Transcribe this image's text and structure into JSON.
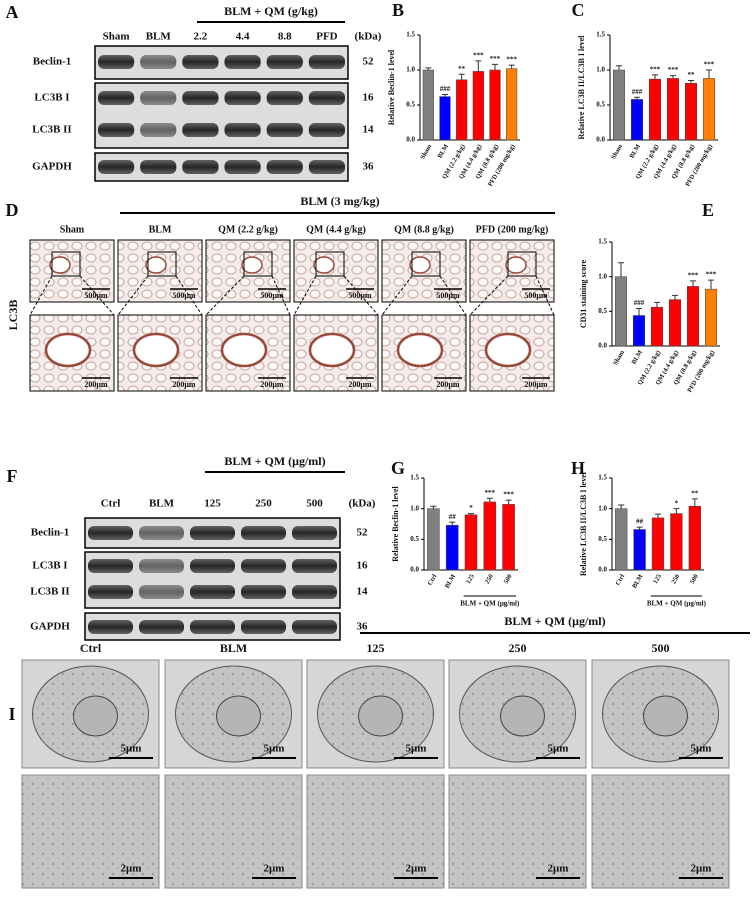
{
  "panel_letters": [
    "A",
    "B",
    "C",
    "D",
    "E",
    "F",
    "G",
    "H",
    "I"
  ],
  "blot_a": {
    "header": "BLM + QM (g/kg)",
    "lanes": [
      "Sham",
      "BLM",
      "2.2",
      "4.4",
      "8.8",
      "PFD"
    ],
    "kda_header": "(kDa)",
    "rows": [
      {
        "name": "Beclin-1",
        "kda": 52
      },
      {
        "name": "LC3B I",
        "kda": 16
      },
      {
        "name": "LC3B II",
        "kda": 14
      },
      {
        "name": "GAPDH",
        "kda": 36
      }
    ]
  },
  "histology_d": {
    "row_label": "LC3B",
    "header": "BLM (3 mg/kg)",
    "columns": [
      "Sham",
      "BLM",
      "QM (2.2 g/kg)",
      "QM (4.4 g/kg)",
      "QM (8.8 g/kg)",
      "PFD (200 mg/kg)"
    ],
    "scale_top": "500μm",
    "scale_bottom": "200μm"
  },
  "blot_f": {
    "header": "BLM + QM (μg/ml)",
    "lanes": [
      "Ctrl",
      "BLM",
      "125",
      "250",
      "500"
    ],
    "kda_header": "(kDa)",
    "rows": [
      {
        "name": "Beclin-1",
        "kda": 52
      },
      {
        "name": "LC3B I",
        "kda": 16
      },
      {
        "name": "LC3B II",
        "kda": 14
      },
      {
        "name": "GAPDH",
        "kda": 36
      }
    ]
  },
  "tem_i": {
    "header": "BLM + QM (μg/ml)",
    "columns": [
      "Ctrl",
      "BLM",
      "125",
      "250",
      "500"
    ],
    "scale_top": "5μm",
    "scale_bottom": "2μm"
  },
  "chart_data": [
    {
      "type": "bar",
      "ylabel": "Relative Beclin-1 level",
      "categories": [
        "Sham",
        "BLM",
        "QM (2.2 g/kg)",
        "QM (4.4 g/kg)",
        "QM (8.8 g/kg)",
        "PFD (200 mg/kg)"
      ],
      "values": [
        1.0,
        0.62,
        0.86,
        0.98,
        1.0,
        1.02
      ],
      "errors": [
        0.03,
        0.03,
        0.08,
        0.15,
        0.08,
        0.05
      ],
      "annotations": [
        null,
        "###",
        "**",
        "***",
        "***",
        "***"
      ],
      "colors": [
        "#808080",
        "#0000ff",
        "#ff0000",
        "#ff0000",
        "#ff0000",
        "#ff8000"
      ],
      "ylim": [
        0,
        1.5
      ],
      "yticks": [
        {
          "value": 0,
          "label": "0.0"
        },
        {
          "value": 0.5,
          "label": "0.5"
        },
        {
          "value": 1,
          "label": "1.0"
        },
        {
          "value": 1.5,
          "label": "1.5"
        }
      ]
    },
    {
      "type": "bar",
      "ylabel": "Relative LC3B II/LC3B I level",
      "categories": [
        "Sham",
        "BLM",
        "QM (2.2 g/kg)",
        "QM (4.4 g/kg)",
        "QM (8.8 g/kg)",
        "PFD (200 mg/kg)"
      ],
      "values": [
        1.0,
        0.58,
        0.87,
        0.88,
        0.81,
        0.88
      ],
      "errors": [
        0.06,
        0.03,
        0.06,
        0.04,
        0.04,
        0.12
      ],
      "annotations": [
        null,
        "###",
        "***",
        "***",
        "**",
        "***"
      ],
      "colors": [
        "#808080",
        "#0000ff",
        "#ff0000",
        "#ff0000",
        "#ff0000",
        "#ff8000"
      ],
      "ylim": [
        0,
        1.5
      ],
      "yticks": [
        {
          "value": 0,
          "label": "0.0"
        },
        {
          "value": 0.5,
          "label": "0.5"
        },
        {
          "value": 1,
          "label": "1.0"
        },
        {
          "value": 1.5,
          "label": "1.5"
        }
      ]
    },
    {
      "type": "bar",
      "ylabel": "CD31 staining score",
      "categories": [
        "Sham",
        "BLM",
        "QM (2.2 g/kg)",
        "QM (4.4 g/kg)",
        "QM (8.8 g/kg)",
        "PFD (200 mg/kg)"
      ],
      "values": [
        1.0,
        0.44,
        0.56,
        0.67,
        0.86,
        0.82
      ],
      "errors": [
        0.2,
        0.1,
        0.07,
        0.06,
        0.08,
        0.13
      ],
      "annotations": [
        null,
        "###",
        null,
        null,
        "***",
        "***"
      ],
      "colors": [
        "#808080",
        "#0000ff",
        "#ff0000",
        "#ff0000",
        "#ff0000",
        "#ff8000"
      ],
      "ylim": [
        0,
        1.5
      ],
      "yticks": [
        {
          "value": 0,
          "label": "0.0"
        },
        {
          "value": 0.5,
          "label": "0.5"
        },
        {
          "value": 1,
          "label": "1.0"
        },
        {
          "value": 1.5,
          "label": "1.5"
        }
      ]
    },
    {
      "type": "bar",
      "ylabel": "Relative Beclin-1 level",
      "xlabel": "BLM + QM (μg/ml)",
      "categories": [
        "Ctrl",
        "BLM",
        "125",
        "250",
        "500"
      ],
      "values": [
        1.0,
        0.73,
        0.9,
        1.11,
        1.07
      ],
      "errors": [
        0.04,
        0.05,
        0.02,
        0.06,
        0.07
      ],
      "annotations": [
        null,
        "##",
        "*",
        "***",
        "***"
      ],
      "colors": [
        "#808080",
        "#0000ff",
        "#ff0000",
        "#ff0000",
        "#ff0000"
      ],
      "ylim": [
        0,
        1.5
      ],
      "yticks": [
        {
          "value": 0,
          "label": "0.0"
        },
        {
          "value": 0.5,
          "label": "0.5"
        },
        {
          "value": 1,
          "label": "1.0"
        },
        {
          "value": 1.5,
          "label": "1.5"
        }
      ]
    },
    {
      "type": "bar",
      "ylabel": "Relative LC3B II/LC3B I level",
      "xlabel": "BLM + QM (μg/ml)",
      "categories": [
        "Ctrl",
        "BLM",
        "125",
        "250",
        "500"
      ],
      "values": [
        1.0,
        0.66,
        0.85,
        0.92,
        1.04
      ],
      "errors": [
        0.06,
        0.04,
        0.06,
        0.08,
        0.12
      ],
      "annotations": [
        null,
        "##",
        null,
        "*",
        "**"
      ],
      "colors": [
        "#808080",
        "#0000ff",
        "#ff0000",
        "#ff0000",
        "#ff0000"
      ],
      "ylim": [
        0,
        1.5
      ],
      "yticks": [
        {
          "value": 0,
          "label": "0.0"
        },
        {
          "value": 0.5,
          "label": "0.5"
        },
        {
          "value": 1,
          "label": "1.0"
        },
        {
          "value": 1.5,
          "label": "1.5"
        }
      ]
    }
  ]
}
